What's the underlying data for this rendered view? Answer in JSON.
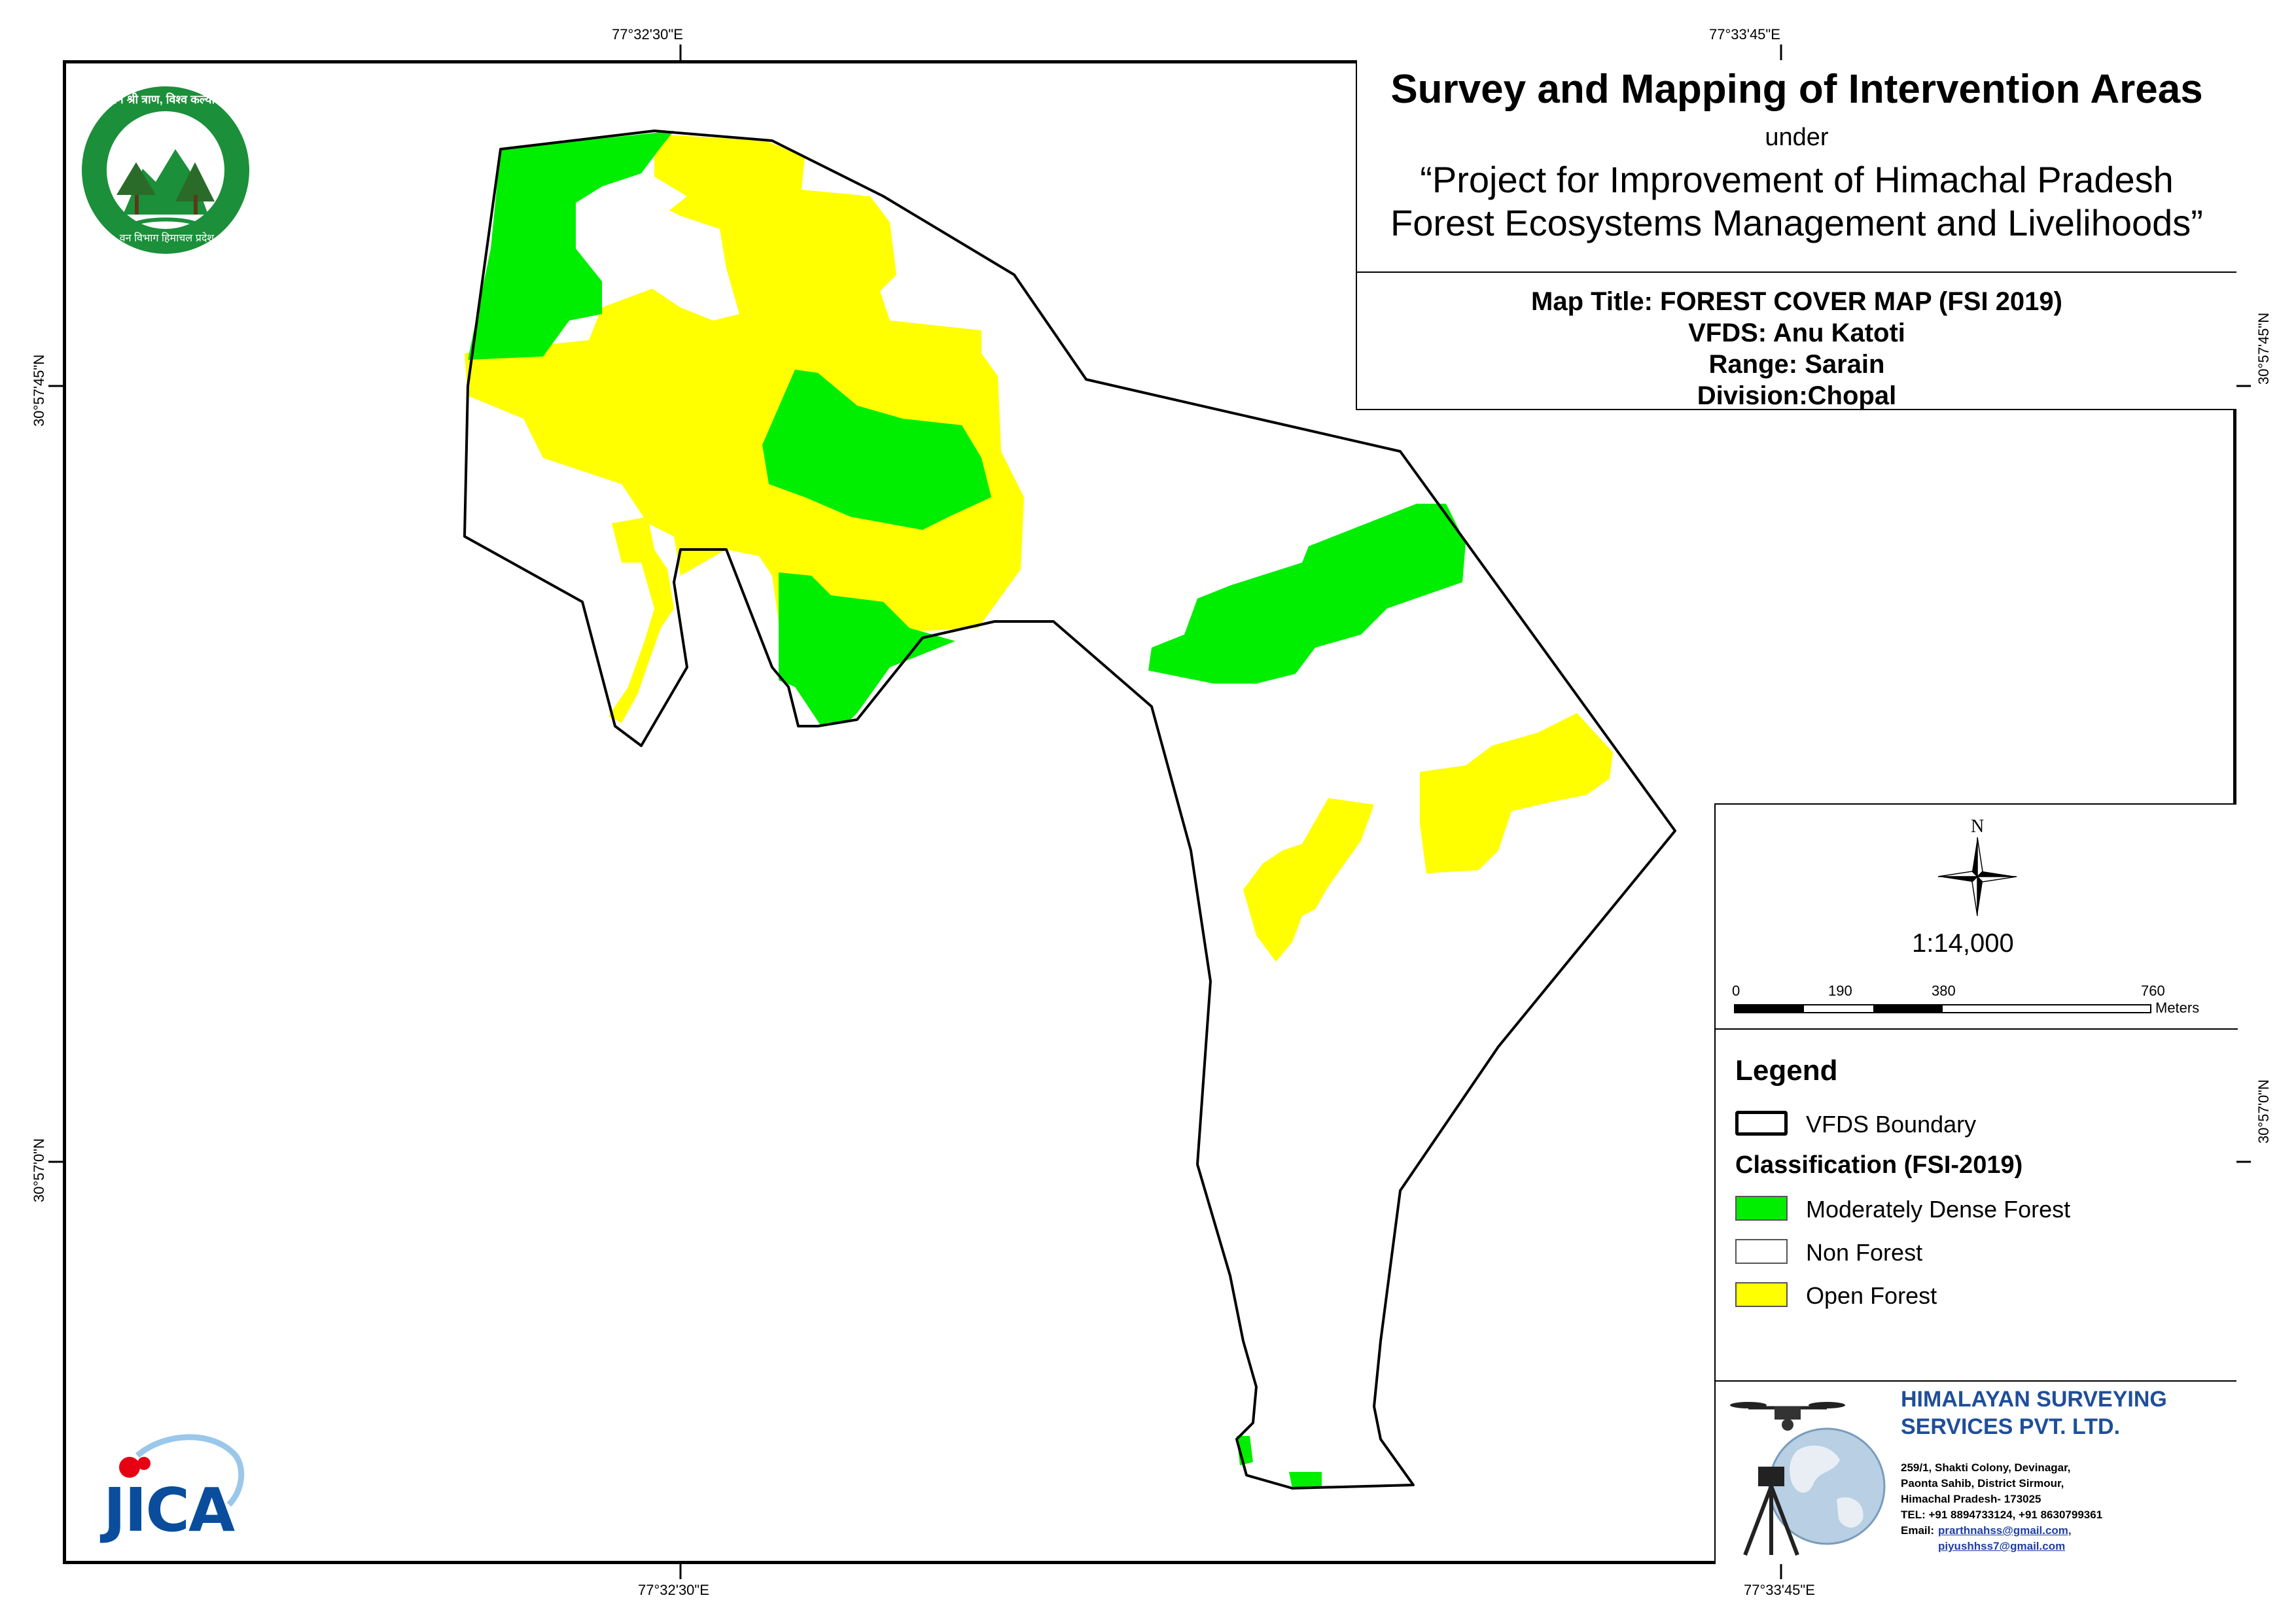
{
  "title": {
    "main": "Survey and Mapping of Intervention Areas",
    "under": "under",
    "project_line1": "“Project for Improvement of Himachal Pradesh",
    "project_line2": "Forest Ecosystems Management and Livelihoods”"
  },
  "meta": {
    "map_title": "Map Title: FOREST COVER MAP (FSI 2019)",
    "vfds": "VFDS: Anu Katoti",
    "range": "Range: Sarain",
    "division": "Division:Chopal"
  },
  "graticule": {
    "top_left": "77°32'30\"E",
    "top_right": "77°33'45\"E",
    "bottom_left": "77°32'30\"E",
    "bottom_right": "77°33'45\"E",
    "left_upper": "30°57'45\"N",
    "left_lower": "30°57'0\"N",
    "right_upper": "30°57'45\"N",
    "right_lower": "30°57'0\"N"
  },
  "north_arrow": {
    "label": "N"
  },
  "scale": {
    "ratio": "1:14,000",
    "ticks": [
      "0",
      "190",
      "380",
      "760"
    ],
    "unit": "Meters"
  },
  "legend": {
    "title": "Legend",
    "boundary_label": "VFDS Boundary",
    "classification_title": "Classification (FSI-2019)",
    "classes": [
      {
        "label": "Moderately Dense Forest",
        "color": "#00ee00"
      },
      {
        "label": "Non Forest",
        "color": "#ffffff"
      },
      {
        "label": "Open Forest",
        "color": "#ffff00"
      }
    ]
  },
  "company": {
    "name_line1": "HIMALAYAN SURVEYING",
    "name_line2": "SERVICES PVT. LTD.",
    "address1": "259/1, Shakti Colony, Devinagar,",
    "address2": "Paonta Sahib, District Sirmour,",
    "address3": "Himachal Pradesh- 173025",
    "tel": "TEL: +91 8894733124, +91 8630799361",
    "email_label": "Email:",
    "email1": "prarthnahss@gmail.com,",
    "email2": "piyushhss7@gmail.com",
    "name_color": "#1f4e9a"
  },
  "logos": {
    "forest_dept": "वन श्री त्राण, विश्व कल्याण",
    "forest_dept_bottom": "वन विभाग हिमाचल प्रदेश",
    "jica": "JICA"
  },
  "colors": {
    "moderately_dense": "#00ee00",
    "open_forest": "#ffff00",
    "non_forest": "#ffffff",
    "boundary": "#000000"
  }
}
